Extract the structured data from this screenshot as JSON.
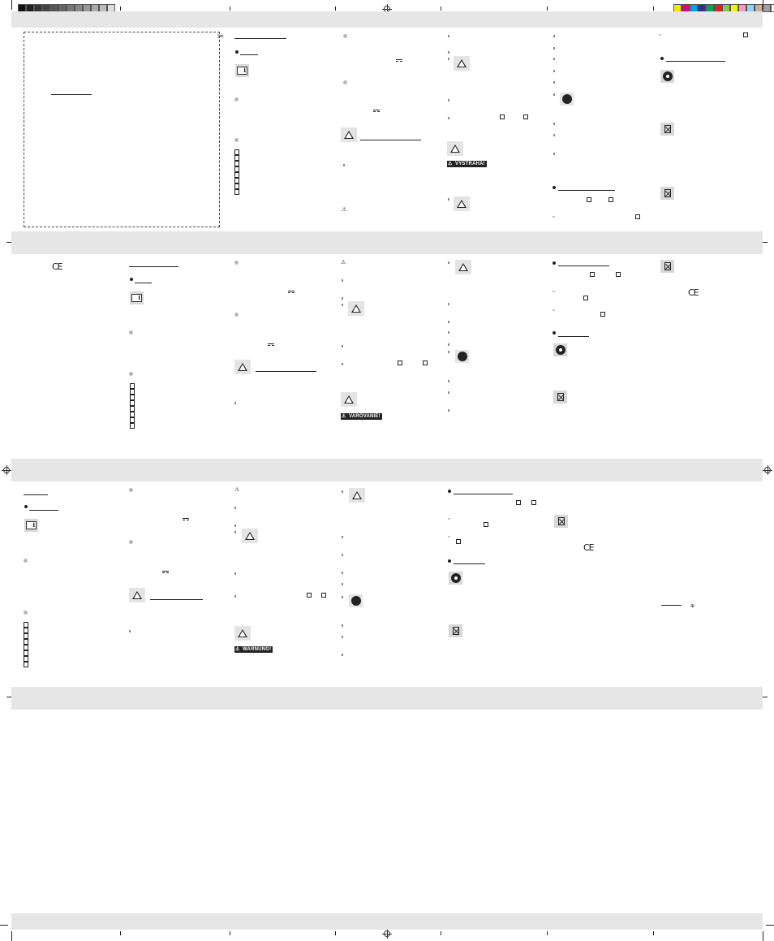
{
  "warnings": {
    "vystraha": "VÝSTRAHA!",
    "varovanie": "VAROVANIE!",
    "warnung": "WARNUNG!"
  },
  "symbols": {
    "ce_mark": "CE",
    "info_icon": "book-info-icon",
    "warning_icon": "warning-triangle-icon",
    "recycle_icon": "green-dot-recycle-icon",
    "bin_icon": "crossed-bin-icon",
    "hand_icon": "hand-stop-icon",
    "scissors_icon": "scissors-icon"
  },
  "colorbar": [
    "#ffe600",
    "#e6007e",
    "#00a0e9",
    "#2e3192",
    "#00a651",
    "#ed1c24",
    "#8dc63f",
    "#fff200",
    "#f49ac1",
    "#8dd8f8",
    "#c7b299",
    "#a0a0a0",
    "#ffffff"
  ],
  "greybar": [
    "#111111",
    "#222222",
    "#333333",
    "#444444",
    "#555555",
    "#666666",
    "#777777",
    "#888888",
    "#999999",
    "#aaaaaa",
    "#bbbbbb",
    "#dddddd"
  ],
  "colors": {
    "band": "#e6e6e6",
    "icon_bg": "#d8d8d8"
  }
}
